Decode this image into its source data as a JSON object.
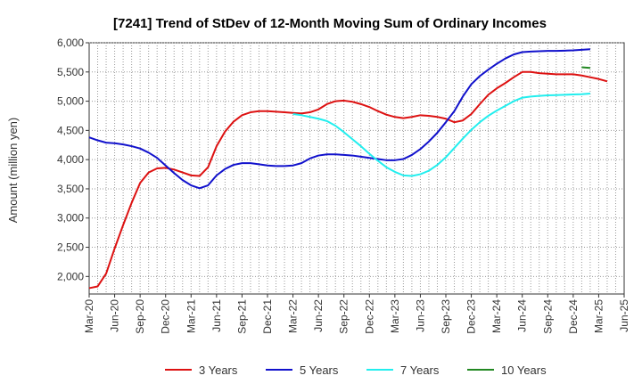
{
  "chart_data": {
    "type": "line",
    "title": "[7241]  Trend of StDev of 12-Month Moving Sum of Ordinary Incomes",
    "xlabel": "",
    "ylabel": "Amount (million yen)",
    "ylim": [
      1700,
      6000
    ],
    "yticks": [
      2000,
      2500,
      3000,
      3500,
      4000,
      4500,
      5000,
      5500,
      6000
    ],
    "ytick_labels": [
      "2,000",
      "2,500",
      "3,000",
      "3,500",
      "4,000",
      "4,500",
      "5,000",
      "5,500",
      "6,000"
    ],
    "x_categories": [
      "Mar-20",
      "Jun-20",
      "Sep-20",
      "Dec-20",
      "Mar-21",
      "Jun-21",
      "Sep-21",
      "Dec-21",
      "Mar-22",
      "Jun-22",
      "Sep-22",
      "Dec-22",
      "Mar-23",
      "Jun-23",
      "Sep-23",
      "Dec-23",
      "Mar-24",
      "Jun-24",
      "Sep-24",
      "Dec-24",
      "Mar-25",
      "Jun-25"
    ],
    "grid": true,
    "legend_position": "bottom",
    "series": [
      {
        "name": "3 Years",
        "color": "#dd1111",
        "start_index": 0,
        "values": [
          1800,
          1830,
          2050,
          2480,
          2880,
          3260,
          3600,
          3780,
          3850,
          3860,
          3830,
          3780,
          3730,
          3720,
          3870,
          4230,
          4480,
          4650,
          4760,
          4810,
          4830,
          4830,
          4820,
          4810,
          4800,
          4790,
          4810,
          4860,
          4950,
          5000,
          5010,
          4990,
          4950,
          4900,
          4830,
          4770,
          4730,
          4710,
          4730,
          4760,
          4750,
          4730,
          4700,
          4640,
          4670,
          4780,
          4950,
          5110,
          5220,
          5310,
          5410,
          5500,
          5500,
          5480,
          5470,
          5460,
          5460,
          5460,
          5440,
          5410,
          5380,
          5340
        ]
      },
      {
        "name": "5 Years",
        "color": "#1111cc",
        "start_index": 0,
        "values": [
          4380,
          4330,
          4290,
          4280,
          4260,
          4230,
          4190,
          4120,
          4030,
          3900,
          3770,
          3650,
          3560,
          3510,
          3560,
          3730,
          3840,
          3910,
          3940,
          3940,
          3920,
          3900,
          3890,
          3890,
          3900,
          3940,
          4020,
          4070,
          4090,
          4090,
          4080,
          4070,
          4050,
          4030,
          4010,
          3990,
          3990,
          4010,
          4080,
          4180,
          4310,
          4460,
          4640,
          4830,
          5080,
          5290,
          5430,
          5540,
          5640,
          5730,
          5800,
          5840,
          5850,
          5855,
          5860,
          5860,
          5865,
          5870,
          5880,
          5890
        ]
      },
      {
        "name": "7 Years",
        "color": "#22eeee",
        "start_index": 24,
        "values": [
          4780,
          4760,
          4730,
          4700,
          4660,
          4580,
          4470,
          4350,
          4230,
          4100,
          3980,
          3870,
          3790,
          3730,
          3720,
          3750,
          3810,
          3910,
          4040,
          4200,
          4360,
          4510,
          4640,
          4750,
          4840,
          4920,
          5000,
          5060,
          5080,
          5090,
          5100,
          5105,
          5110,
          5115,
          5120,
          5130
        ]
      },
      {
        "name": "10 Years",
        "color": "#228822",
        "start_index": 58,
        "values": [
          5580,
          5570
        ]
      }
    ]
  }
}
